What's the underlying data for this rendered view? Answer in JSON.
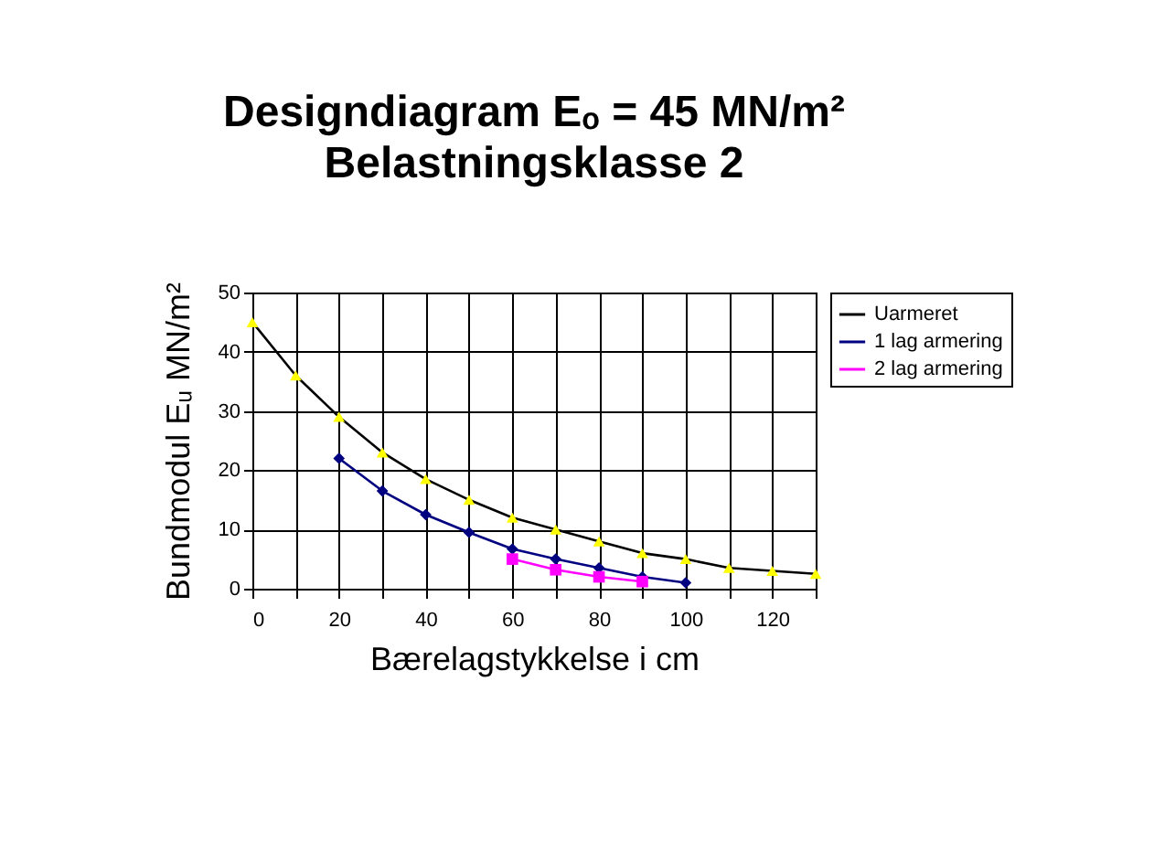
{
  "chart_data": {
    "type": "line",
    "title": "Designdiagram Eₒ = 45 MN/m²",
    "subtitle": "Belastningsklasse 2",
    "xlabel": "Bærelagstykkelse i cm",
    "ylabel": "Bundmodul Eᵤ MN/m²",
    "series": [
      {
        "name": "Uarmeret",
        "color": "#ffff00",
        "marker": "triangle",
        "x": [
          0,
          10,
          20,
          30,
          40,
          50,
          60,
          70,
          80,
          90,
          100,
          110,
          120,
          130
        ],
        "values": [
          45,
          36,
          29,
          23,
          18.5,
          15,
          12,
          10,
          8,
          6,
          5,
          3.5,
          3,
          2.5
        ]
      },
      {
        "name": "1 lag armering",
        "color": "#000080",
        "marker": "diamond",
        "x": [
          20,
          30,
          40,
          50,
          60,
          70,
          80,
          90,
          100
        ],
        "values": [
          22,
          16.5,
          12.5,
          9.5,
          6.7,
          5,
          3.5,
          2,
          1
        ]
      },
      {
        "name": "2 lag armering",
        "color": "#ff00ff",
        "marker": "square",
        "x": [
          60,
          70,
          80,
          90
        ],
        "values": [
          5,
          3.2,
          2,
          1.2
        ]
      }
    ],
    "xlim": [
      0,
      130
    ],
    "xticks": [
      0,
      {
        "value": 10,
        "label": null
      },
      20,
      {
        "value": 30,
        "label": null
      },
      40,
      {
        "value": 50,
        "label": null
      },
      60,
      {
        "value": 70,
        "label": null
      },
      80,
      {
        "value": 90,
        "label": null
      },
      100,
      {
        "value": 110,
        "label": null
      },
      120,
      {
        "value": 130,
        "label": null
      }
    ],
    "ylim": [
      0,
      50
    ],
    "yticks": [
      0,
      10,
      20,
      30,
      40,
      50
    ],
    "grid": true,
    "legend": "right",
    "line_style": "solid"
  }
}
